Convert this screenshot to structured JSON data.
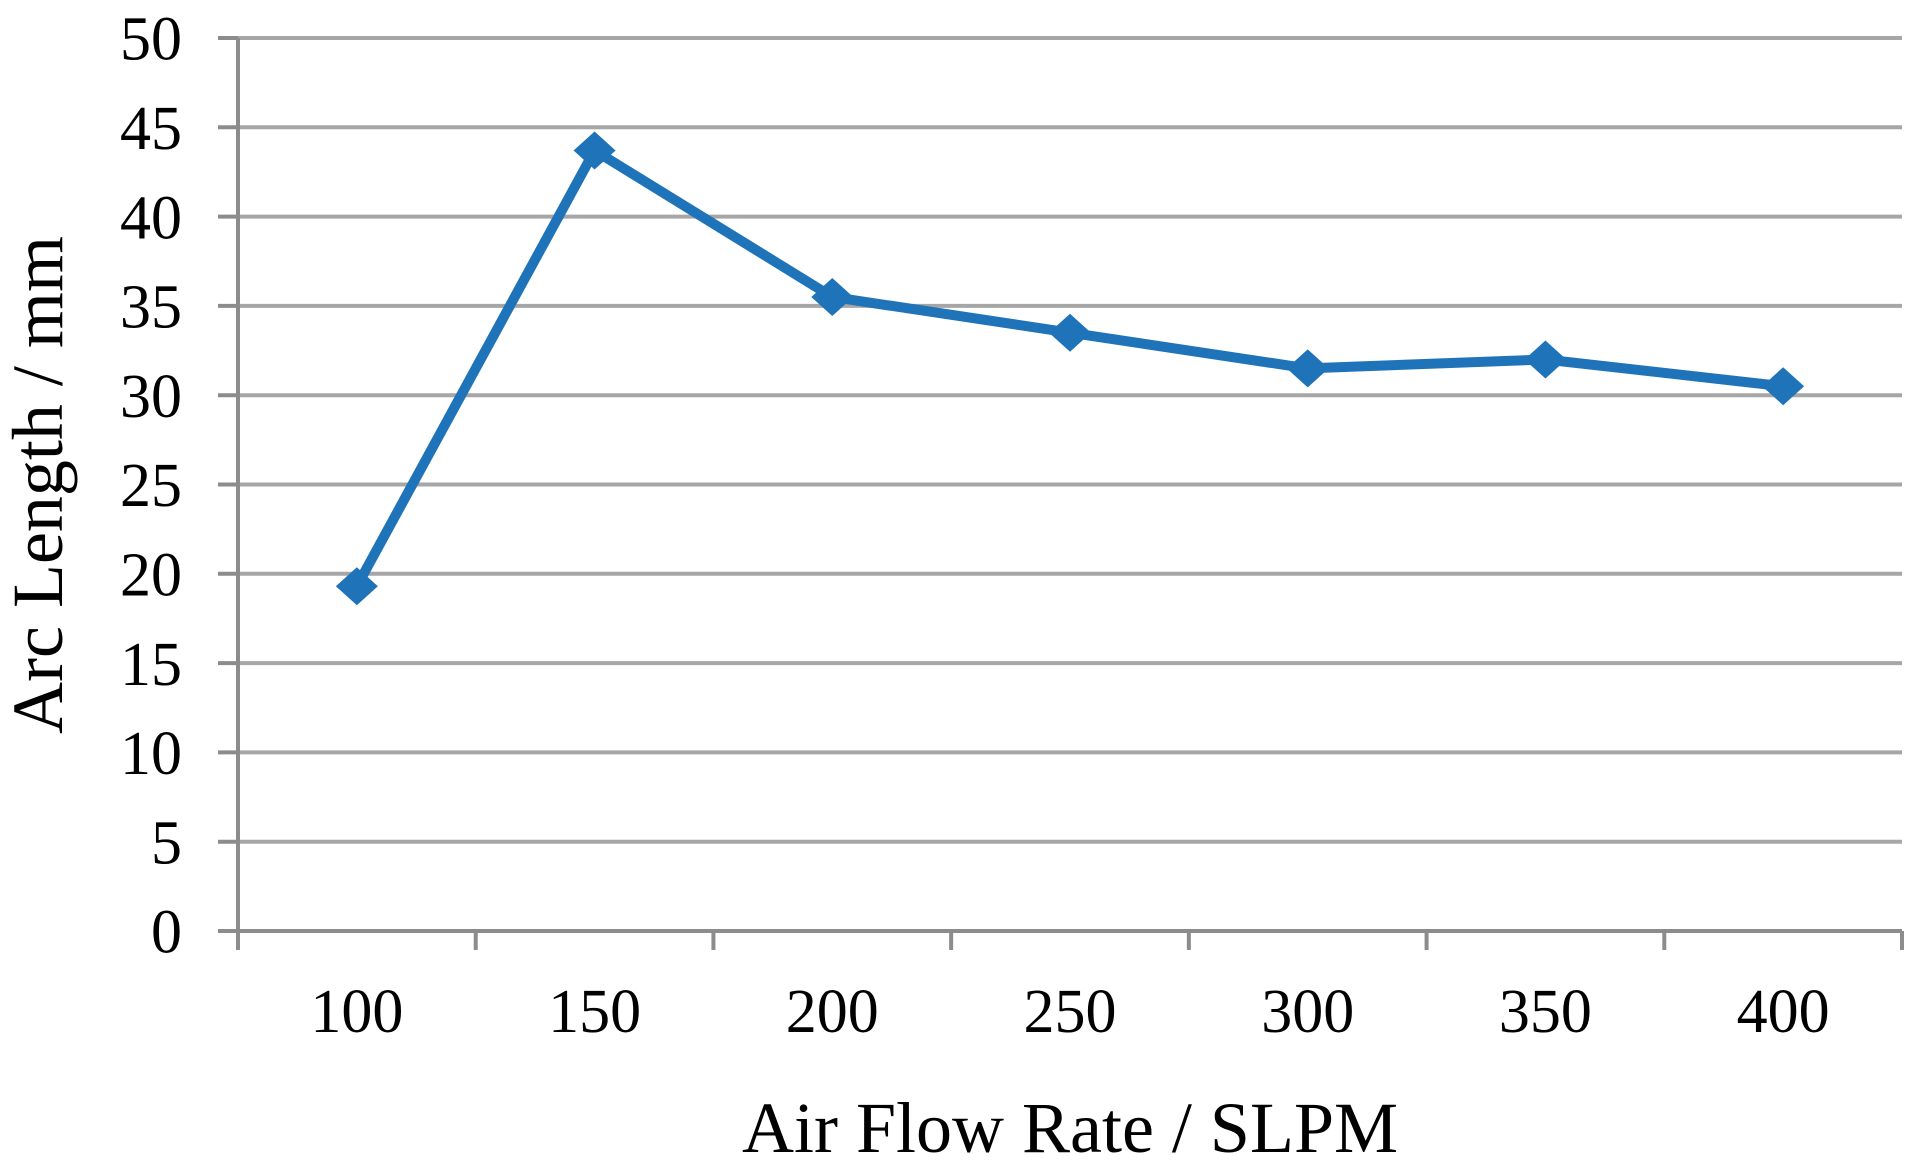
{
  "chart_data": {
    "type": "line",
    "title": "",
    "xlabel": "Air Flow Rate / SLPM",
    "ylabel": "Arc Length / mm",
    "x": [
      100,
      150,
      200,
      250,
      300,
      350,
      400
    ],
    "xtick_labels": [
      "100",
      "150",
      "200",
      "250",
      "300",
      "350",
      "400"
    ],
    "series": [
      {
        "name": "Arc Length",
        "values": [
          19.3,
          43.7,
          35.5,
          33.5,
          31.5,
          32.0,
          30.5
        ]
      }
    ],
    "ylim": [
      0,
      50
    ],
    "yticks": [
      0,
      5,
      10,
      15,
      20,
      25,
      30,
      35,
      40,
      45,
      50
    ],
    "grid": "horizontal",
    "legend": "none",
    "marker": "diamond",
    "colors": {
      "series_line": "#1f73b8",
      "gridline": "#a6a6a6",
      "axis": "#8c8c8c",
      "text": "#000000",
      "background": "#ffffff"
    }
  }
}
